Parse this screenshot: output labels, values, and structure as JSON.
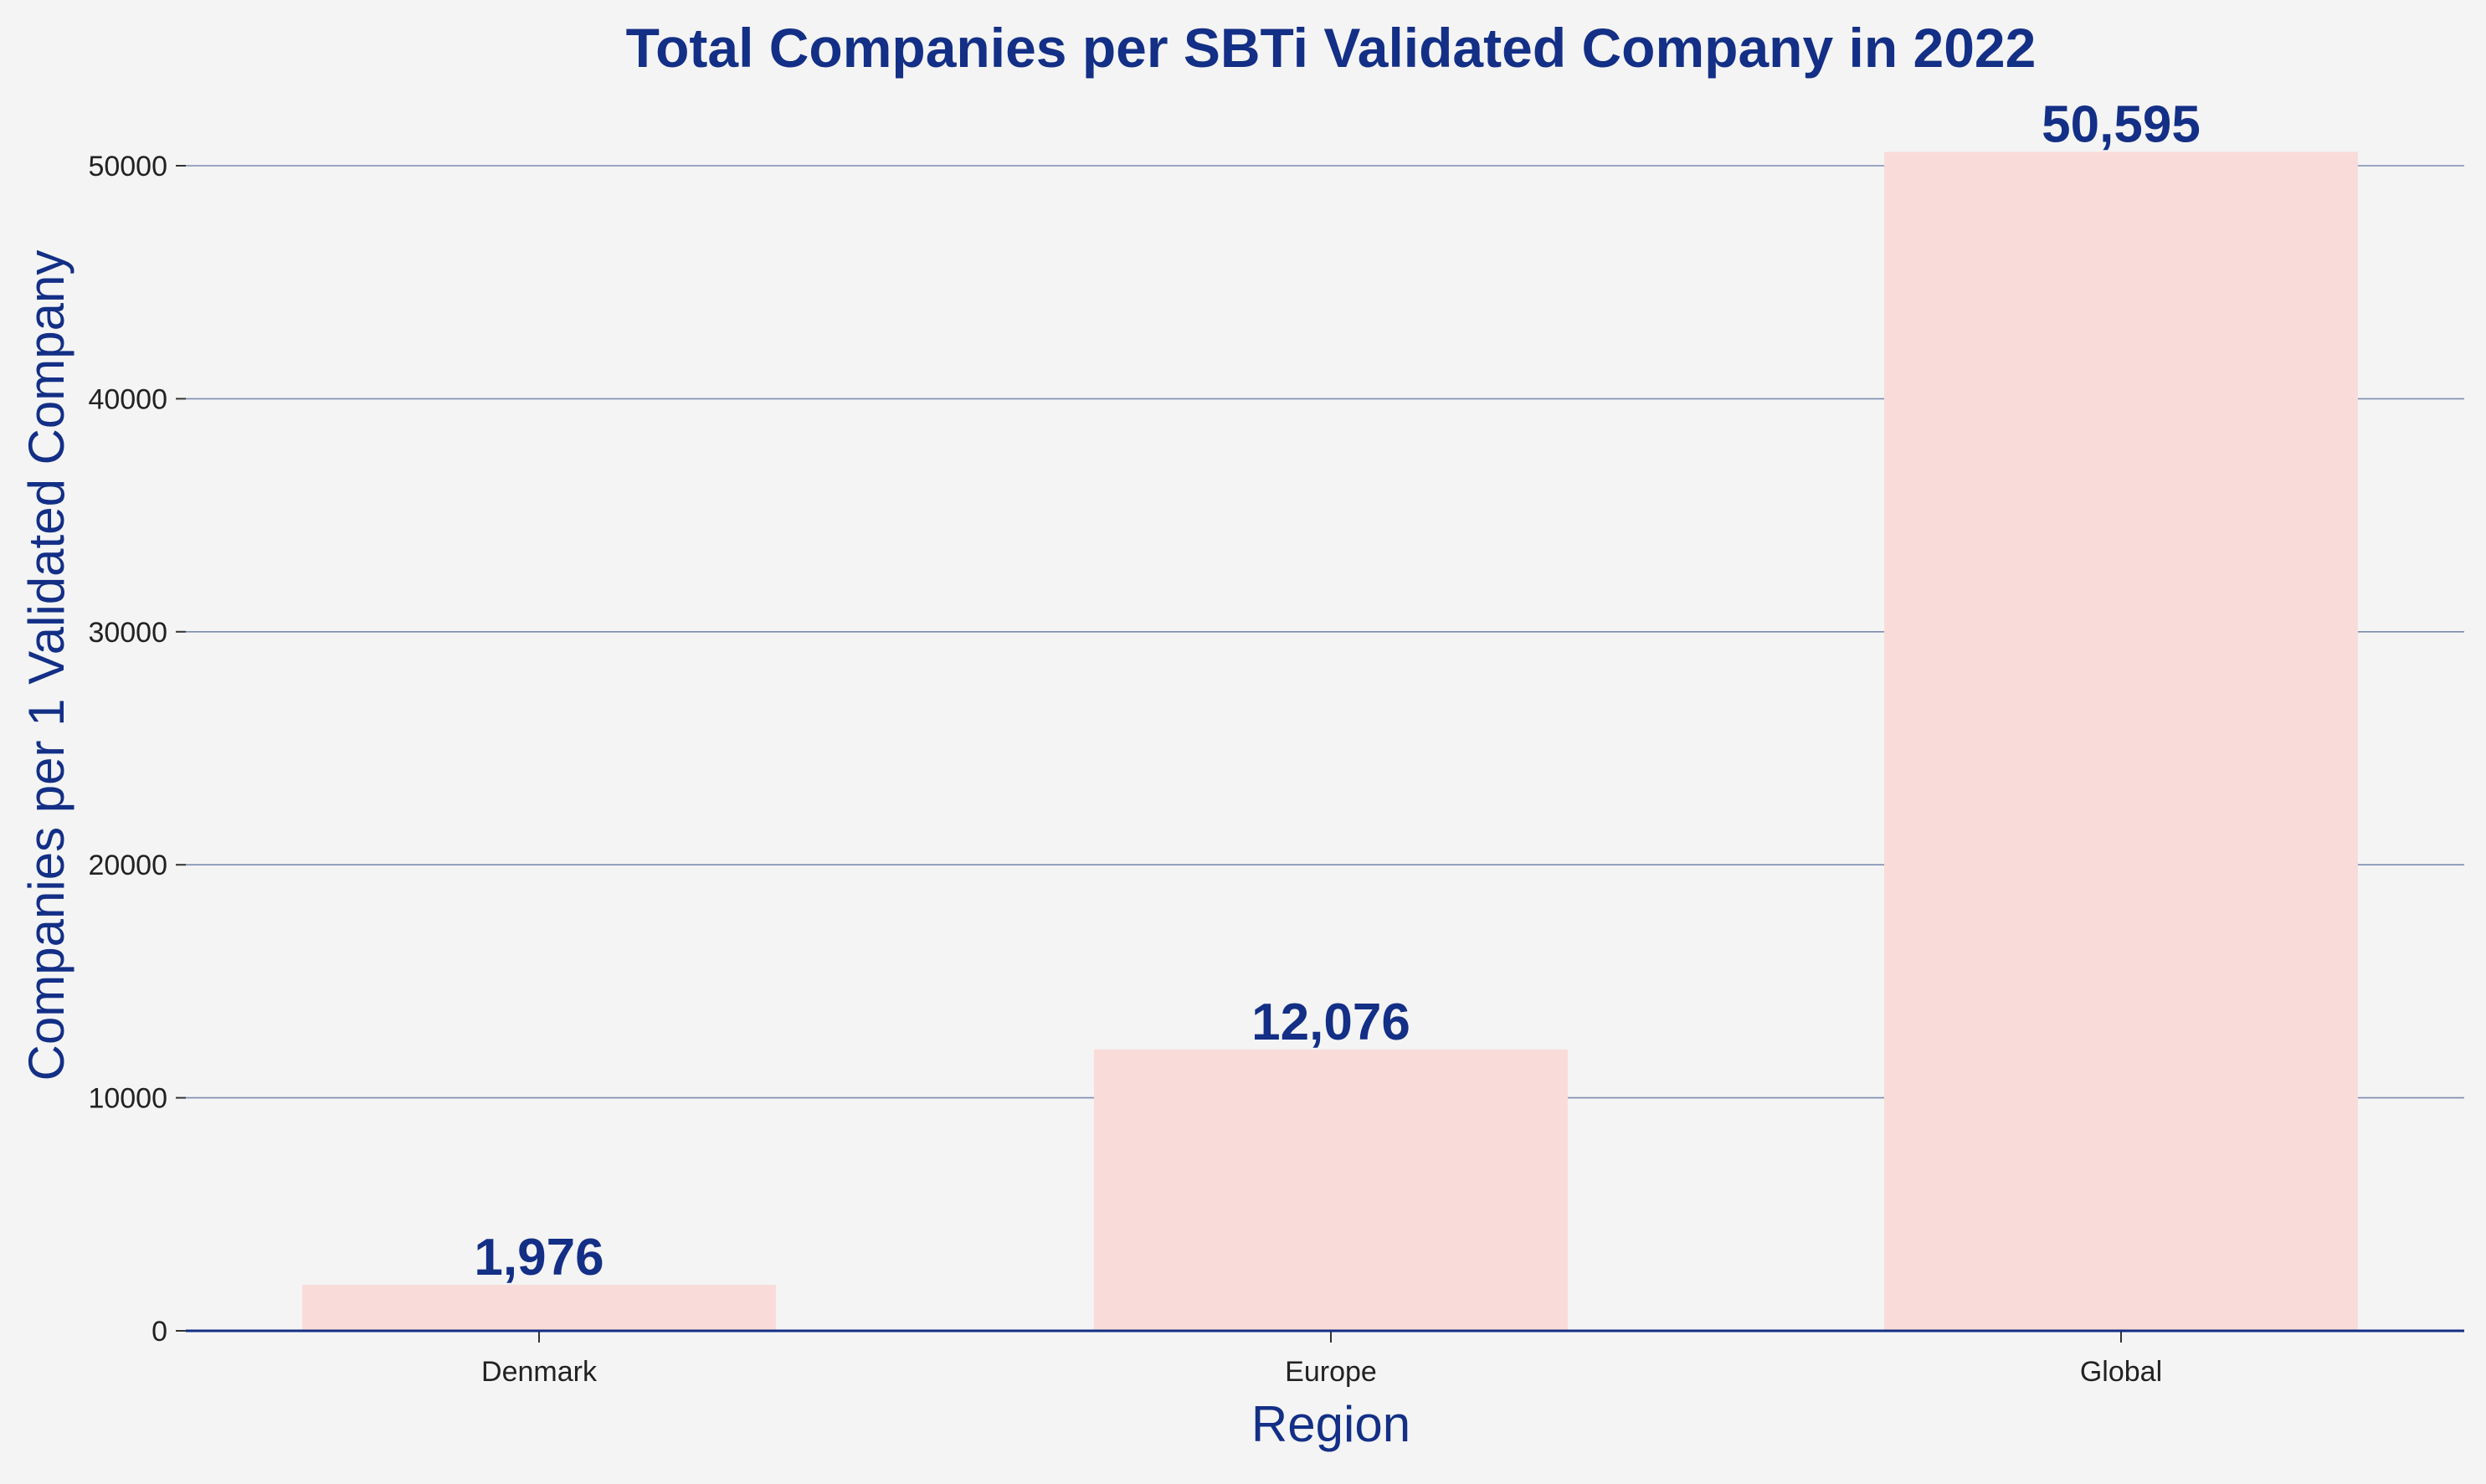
{
  "chart_data": {
    "type": "bar",
    "title": "Total Companies per SBTi Validated Company in 2022",
    "xlabel": "Region",
    "ylabel": "Companies per 1 Validated Company",
    "categories": [
      "Denmark",
      "Europe",
      "Global"
    ],
    "values": [
      1976,
      12076,
      50595
    ],
    "data_labels": [
      "1,976",
      "12,076",
      "50,595"
    ],
    "ylim": [
      0,
      52000
    ],
    "yticks": [
      0,
      10000,
      20000,
      30000,
      40000,
      50000
    ],
    "ytick_labels": [
      "0",
      "10000",
      "20000",
      "30000",
      "40000",
      "50000"
    ],
    "grid": "horizontal",
    "legend": "none",
    "colors": {
      "bar": "#f9dcd9",
      "text": "#132f86",
      "grid": "#7b8cb0",
      "axis": "#132f86",
      "tick_text": "#222222",
      "background": "#f4f4f4"
    }
  }
}
